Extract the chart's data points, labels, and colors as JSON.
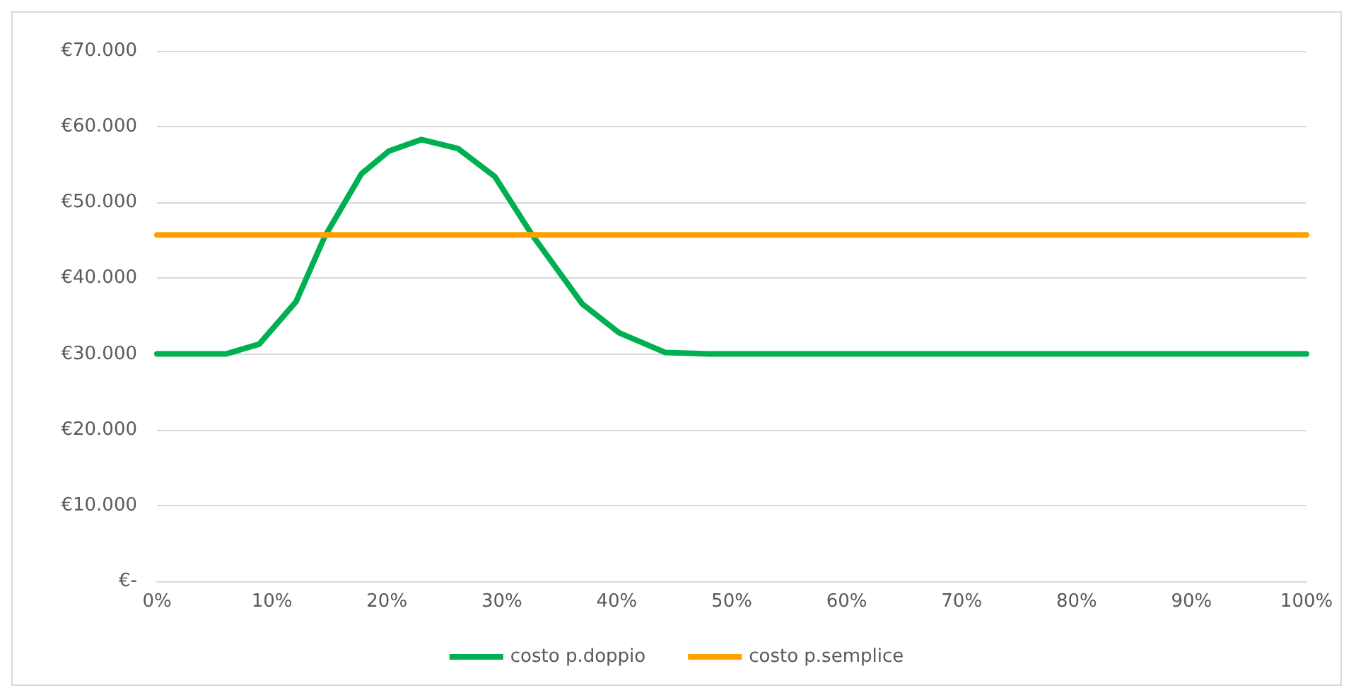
{
  "chart_data": {
    "type": "line",
    "xlim": [
      0,
      100
    ],
    "ylim": [
      0,
      70000
    ],
    "xticks": [
      {
        "value": 0,
        "label": "0%"
      },
      {
        "value": 10,
        "label": "10%"
      },
      {
        "value": 20,
        "label": "20%"
      },
      {
        "value": 30,
        "label": "30%"
      },
      {
        "value": 40,
        "label": "40%"
      },
      {
        "value": 50,
        "label": "50%"
      },
      {
        "value": 60,
        "label": "60%"
      },
      {
        "value": 70,
        "label": "70%"
      },
      {
        "value": 80,
        "label": "80%"
      },
      {
        "value": 90,
        "label": "90%"
      },
      {
        "value": 100,
        "label": "100%"
      }
    ],
    "yticks": [
      {
        "value": 0,
        "label": "€-"
      },
      {
        "value": 10000,
        "label": "€10.000"
      },
      {
        "value": 20000,
        "label": "€20.000"
      },
      {
        "value": 30000,
        "label": "€30.000"
      },
      {
        "value": 40000,
        "label": "€40.000"
      },
      {
        "value": 50000,
        "label": "€50.000"
      },
      {
        "value": 60000,
        "label": "€60.000"
      },
      {
        "value": 70000,
        "label": "€70.000"
      }
    ],
    "series": [
      {
        "name": "costo p.doppio",
        "color": "#00b050",
        "x": [
          0,
          6,
          8.9,
          12.1,
          14.6,
          17.8,
          20.2,
          23,
          26.2,
          29.4,
          32.6,
          37,
          40.2,
          44.2,
          48,
          100
        ],
        "values": [
          30000,
          30000,
          31300,
          36900,
          45500,
          53800,
          56800,
          58300,
          57100,
          53400,
          45800,
          36600,
          32800,
          30200,
          30000,
          30000
        ]
      },
      {
        "name": "costo p.semplice",
        "color": "#ffa000",
        "x": [
          0,
          100
        ],
        "values": [
          45700,
          45700
        ]
      }
    ],
    "grid": "y",
    "legend": "bottom",
    "marker": "none",
    "line_style": "solid"
  }
}
